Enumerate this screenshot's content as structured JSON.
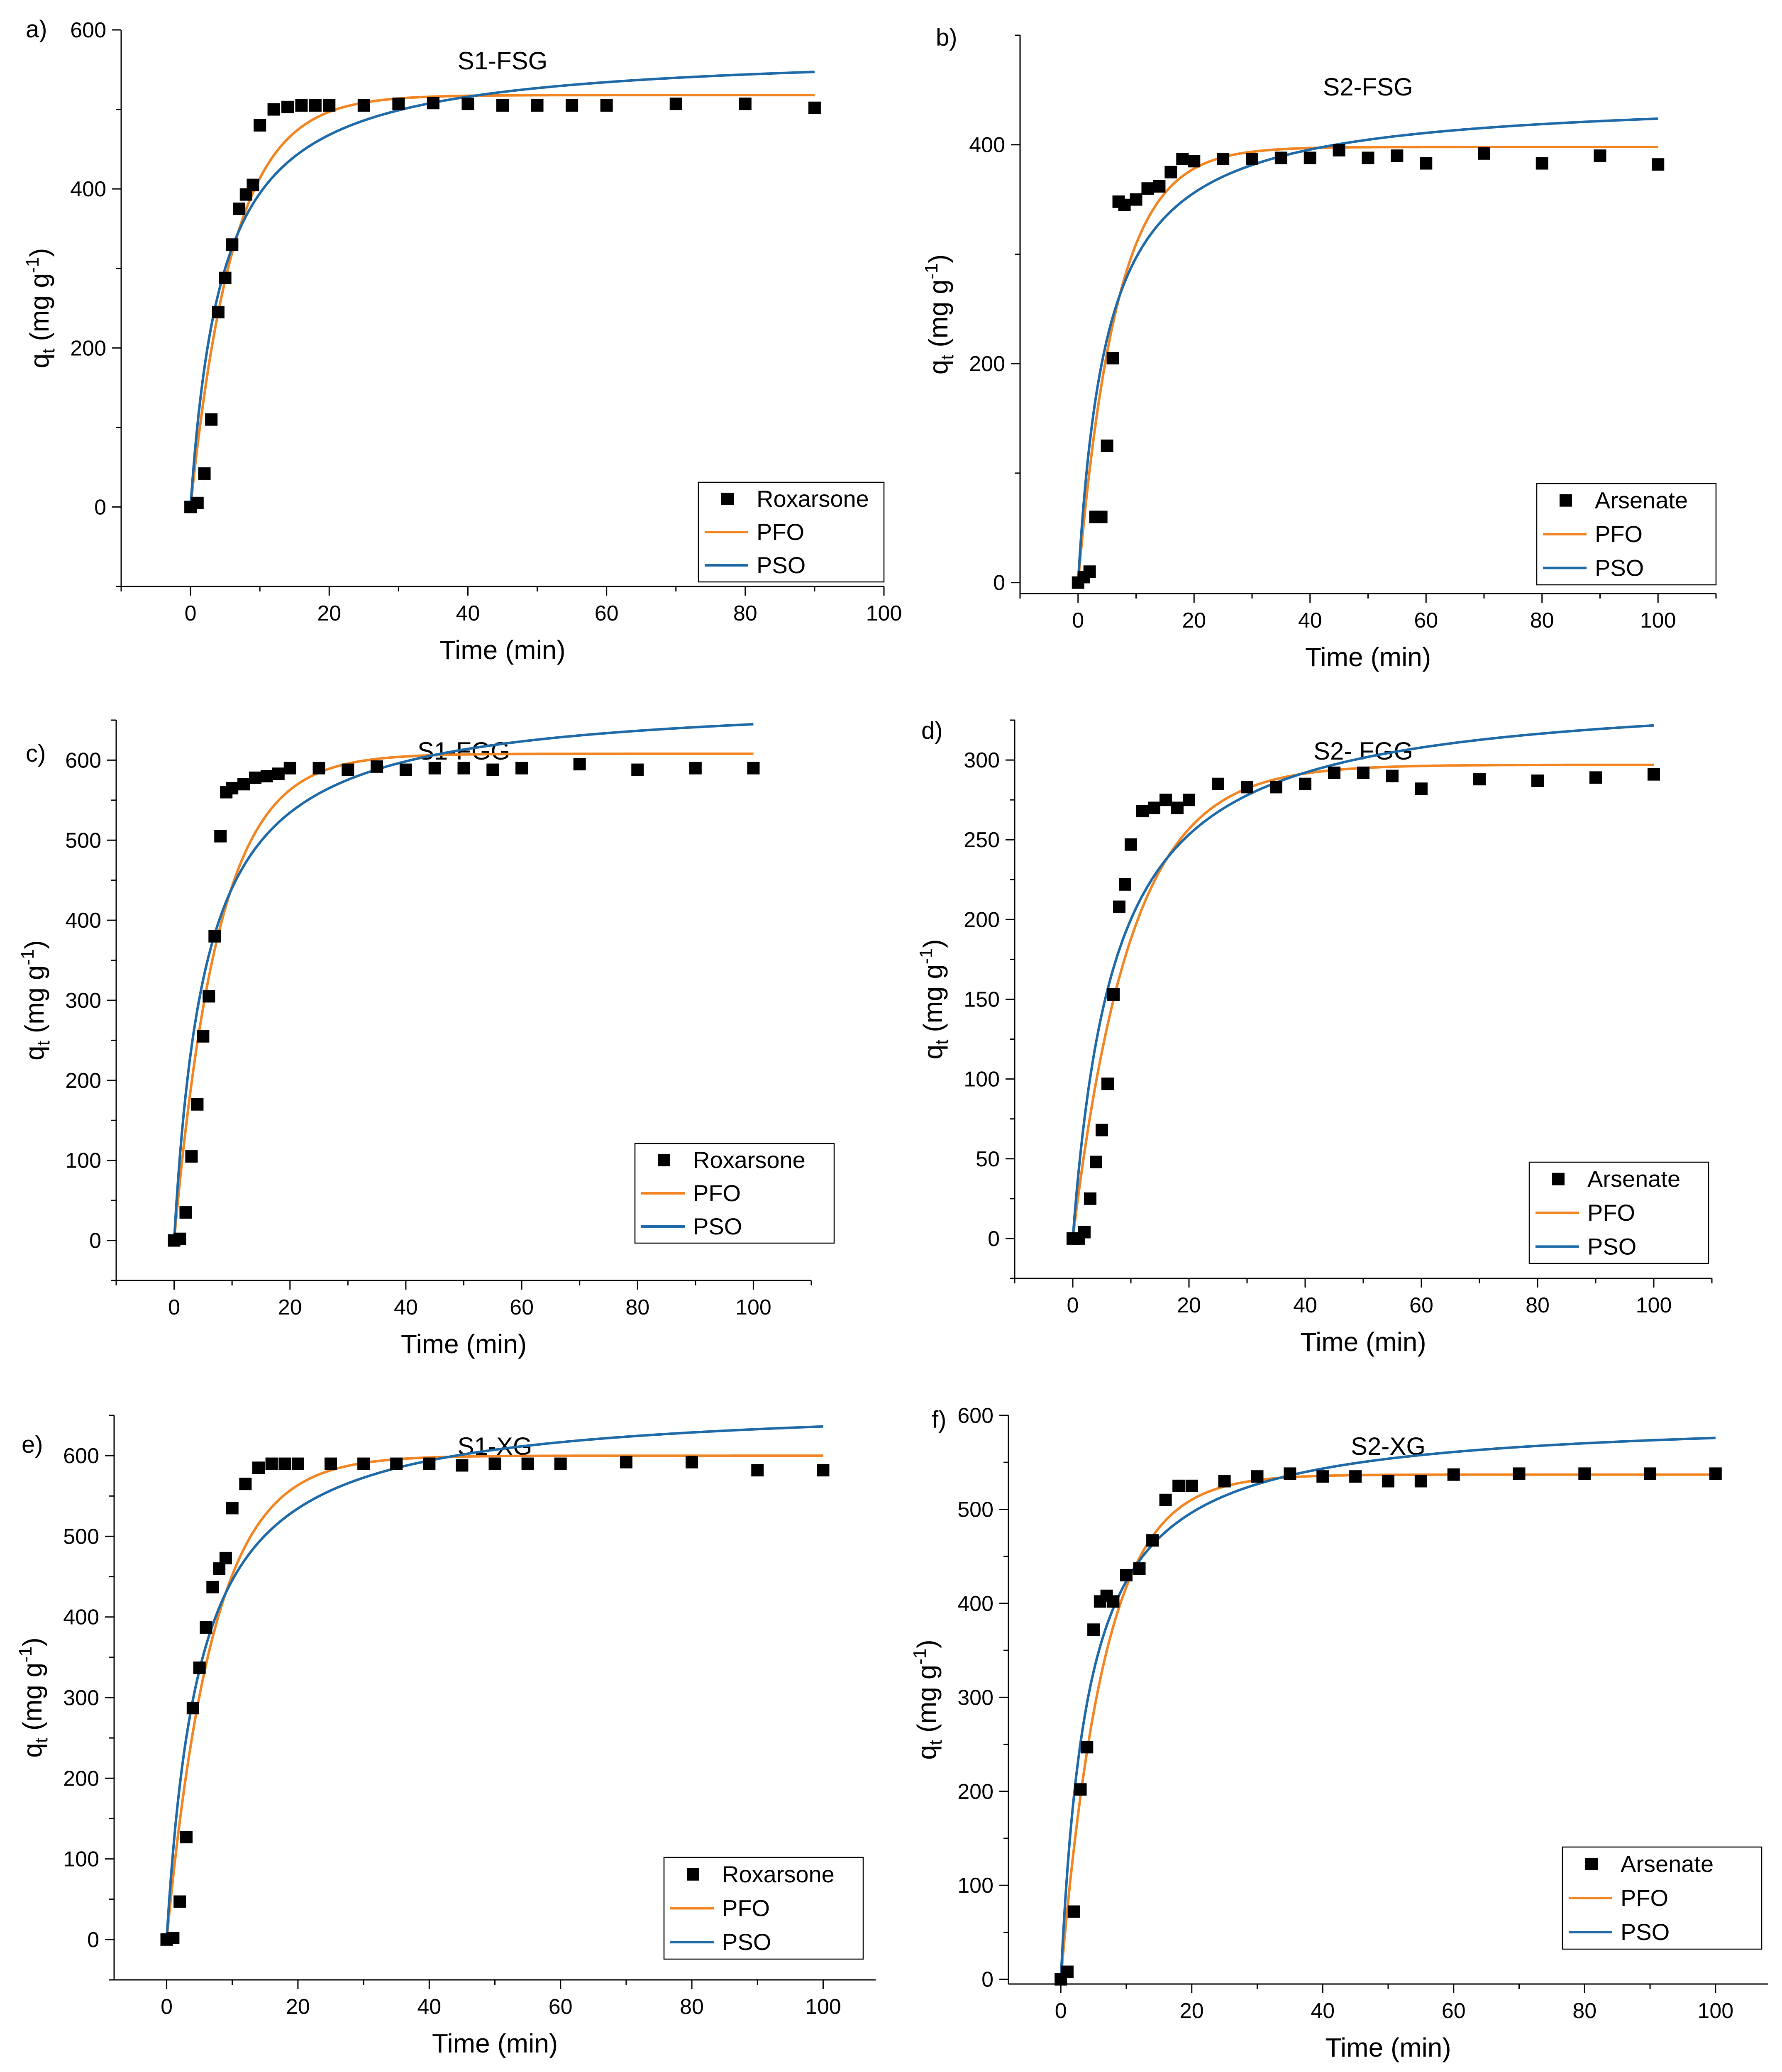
{
  "colors": {
    "pfo": "#F28522",
    "pso": "#1E6AA8",
    "points": "#000000"
  },
  "legend_labels": {
    "fit1": "PFO",
    "fit2": "PSO"
  },
  "xlabel": "Time (min)",
  "ylabel": {
    "q": "q",
    "sub": "t",
    "mid": " (mg g",
    "sup": "-1",
    "end": ")"
  },
  "chart_data": [
    {
      "type": "scatter",
      "panel": "a)",
      "title": "S1-FSG",
      "xlabel": "Time (min)",
      "ylabel": "q_t (mg g-1)",
      "xlim": [
        -10,
        100
      ],
      "ylim": [
        -100,
        600
      ],
      "xticks": [
        0,
        20,
        40,
        60,
        80,
        100
      ],
      "yticks": [
        0,
        200,
        400,
        600
      ],
      "legend_position": "bottom-right",
      "series": [
        {
          "name": "Roxarsone",
          "kind": "points",
          "x": [
            0,
            1,
            2,
            3,
            4,
            5,
            6,
            7,
            8,
            9,
            10,
            12,
            14,
            16,
            18,
            20,
            25,
            30,
            35,
            40,
            45,
            50,
            55,
            60,
            70,
            80,
            90
          ],
          "y": [
            0,
            5,
            42,
            110,
            245,
            288,
            330,
            375,
            393,
            405,
            480,
            500,
            503,
            505,
            505,
            505,
            505,
            507,
            508,
            507,
            505,
            505,
            505,
            505,
            507,
            507,
            502
          ]
        },
        {
          "name": "PFO",
          "kind": "pfo",
          "qe": 518,
          "k": 0.16,
          "xmax": 90
        },
        {
          "name": "PSO",
          "kind": "pso",
          "qe": 575,
          "k": 0.00038,
          "xmax": 90
        }
      ]
    },
    {
      "type": "scatter",
      "panel": "b)",
      "title": "S2-FSG",
      "xlabel": "Time (min)",
      "ylabel": "q_t (mg g-1)",
      "xlim": [
        -10,
        110
      ],
      "ylim": [
        -10,
        500
      ],
      "xticks": [
        0,
        20,
        40,
        60,
        80,
        100
      ],
      "yticks": [
        0,
        200,
        400
      ],
      "legend_position": "bottom-right",
      "series": [
        {
          "name": "Arsenate",
          "kind": "points",
          "x": [
            0,
            1,
            2,
            3,
            4,
            5,
            6,
            7,
            8,
            10,
            12,
            14,
            16,
            18,
            20,
            25,
            30,
            35,
            40,
            45,
            50,
            55,
            60,
            70,
            80,
            90,
            100
          ],
          "y": [
            0,
            5,
            10,
            60,
            60,
            125,
            205,
            348,
            345,
            350,
            360,
            362,
            375,
            387,
            385,
            387,
            387,
            388,
            388,
            395,
            388,
            390,
            383,
            392,
            383,
            390,
            382
          ]
        },
        {
          "name": "PFO",
          "kind": "pfo",
          "qe": 398,
          "k": 0.15,
          "xmax": 100
        },
        {
          "name": "PSO",
          "kind": "pso",
          "qe": 445,
          "k": 0.00045,
          "xmax": 100
        }
      ]
    },
    {
      "type": "scatter",
      "panel": "c)",
      "title": "S1-FGG",
      "xlabel": "Time (min)",
      "ylabel": "q_t (mg g-1)",
      "xlim": [
        -10,
        110
      ],
      "ylim": [
        -50,
        650
      ],
      "xticks": [
        0,
        20,
        40,
        60,
        80,
        100
      ],
      "yticks": [
        0,
        100,
        200,
        300,
        400,
        500,
        600
      ],
      "legend_position": "bottom-right",
      "series": [
        {
          "name": "Roxarsone",
          "kind": "points",
          "x": [
            0,
            1,
            2,
            3,
            4,
            5,
            6,
            7,
            8,
            9,
            10,
            12,
            14,
            16,
            18,
            20,
            25,
            30,
            35,
            40,
            45,
            50,
            55,
            60,
            70,
            80,
            90,
            100
          ],
          "y": [
            0,
            2,
            35,
            105,
            170,
            255,
            305,
            380,
            505,
            560,
            565,
            570,
            578,
            580,
            583,
            590,
            590,
            588,
            592,
            588,
            590,
            590,
            588,
            590,
            595,
            588,
            590,
            590
          ]
        },
        {
          "name": "PFO",
          "kind": "pfo",
          "qe": 608,
          "k": 0.13,
          "xmax": 100
        },
        {
          "name": "PSO",
          "kind": "pso",
          "qe": 680,
          "k": 0.00027,
          "xmax": 100
        }
      ]
    },
    {
      "type": "scatter",
      "panel": "d)",
      "title": "S2- FGG",
      "xlabel": "Time (min)",
      "ylabel": "q_t (mg g-1)",
      "xlim": [
        -10,
        110
      ],
      "ylim": [
        -25,
        325
      ],
      "xticks": [
        0,
        20,
        40,
        60,
        80,
        100
      ],
      "yticks": [
        0,
        50,
        100,
        150,
        200,
        250,
        300
      ],
      "legend_position": "bottom-right",
      "series": [
        {
          "name": "Arsenate",
          "kind": "points",
          "x": [
            0,
            1,
            2,
            3,
            4,
            5,
            6,
            7,
            8,
            9,
            10,
            12,
            14,
            16,
            18,
            20,
            25,
            30,
            35,
            40,
            45,
            50,
            55,
            60,
            70,
            80,
            90,
            100
          ],
          "y": [
            0,
            0,
            4,
            25,
            48,
            68,
            97,
            153,
            208,
            222,
            247,
            268,
            270,
            275,
            270,
            275,
            285,
            283,
            283,
            285,
            292,
            292,
            290,
            282,
            288,
            287,
            289,
            291
          ]
        },
        {
          "name": "PFO",
          "kind": "pfo",
          "qe": 297,
          "k": 0.1,
          "xmax": 100
        },
        {
          "name": "PSO",
          "kind": "pso",
          "qe": 345,
          "k": 0.0004,
          "xmax": 100
        }
      ]
    },
    {
      "type": "scatter",
      "panel": "e)",
      "title": "S1-XG",
      "xlabel": "Time (min)",
      "ylabel": "q_t (mg g-1)",
      "xlim": [
        -8,
        108
      ],
      "ylim": [
        -50,
        650
      ],
      "xticks": [
        0,
        20,
        40,
        60,
        80,
        100
      ],
      "yticks": [
        0,
        100,
        200,
        300,
        400,
        500,
        600
      ],
      "legend_position": "bottom-right",
      "series": [
        {
          "name": "Roxarsone",
          "kind": "points",
          "x": [
            0,
            1,
            2,
            3,
            4,
            5,
            6,
            7,
            8,
            9,
            10,
            12,
            14,
            16,
            18,
            20,
            25,
            30,
            35,
            40,
            45,
            50,
            55,
            60,
            70,
            80,
            90,
            100
          ],
          "y": [
            0,
            2,
            47,
            127,
            287,
            337,
            387,
            437,
            460,
            473,
            535,
            565,
            585,
            590,
            590,
            590,
            590,
            590,
            590,
            590,
            588,
            590,
            590,
            590,
            592,
            592,
            582,
            582
          ]
        },
        {
          "name": "PFO",
          "kind": "pfo",
          "qe": 600,
          "k": 0.14,
          "xmax": 100
        },
        {
          "name": "PSO",
          "kind": "pso",
          "qe": 668,
          "k": 0.0003,
          "xmax": 100
        }
      ]
    },
    {
      "type": "scatter",
      "panel": "f)",
      "title": "S2-XG",
      "xlabel": "Time (min)",
      "ylabel": "q_t (mg g-1)",
      "xlim": [
        -8,
        108
      ],
      "ylim": [
        -5,
        600
      ],
      "xticks": [
        0,
        20,
        40,
        60,
        80,
        100
      ],
      "yticks": [
        0,
        100,
        200,
        300,
        400,
        500,
        600
      ],
      "legend_position": "bottom-right",
      "series": [
        {
          "name": "Arsenate",
          "kind": "points",
          "x": [
            0,
            1,
            2,
            3,
            4,
            5,
            6,
            7,
            8,
            10,
            12,
            14,
            16,
            18,
            20,
            25,
            30,
            35,
            40,
            45,
            50,
            55,
            60,
            70,
            80,
            90,
            100
          ],
          "y": [
            0,
            8,
            72,
            202,
            247,
            372,
            402,
            408,
            402,
            430,
            437,
            467,
            510,
            525,
            525,
            530,
            535,
            538,
            535,
            535,
            530,
            530,
            537,
            538,
            538,
            538,
            538
          ]
        },
        {
          "name": "PFO",
          "kind": "pfo",
          "qe": 537,
          "k": 0.15,
          "xmax": 100
        },
        {
          "name": "PSO",
          "kind": "pso",
          "qe": 600,
          "k": 0.0004,
          "xmax": 100
        }
      ]
    }
  ]
}
